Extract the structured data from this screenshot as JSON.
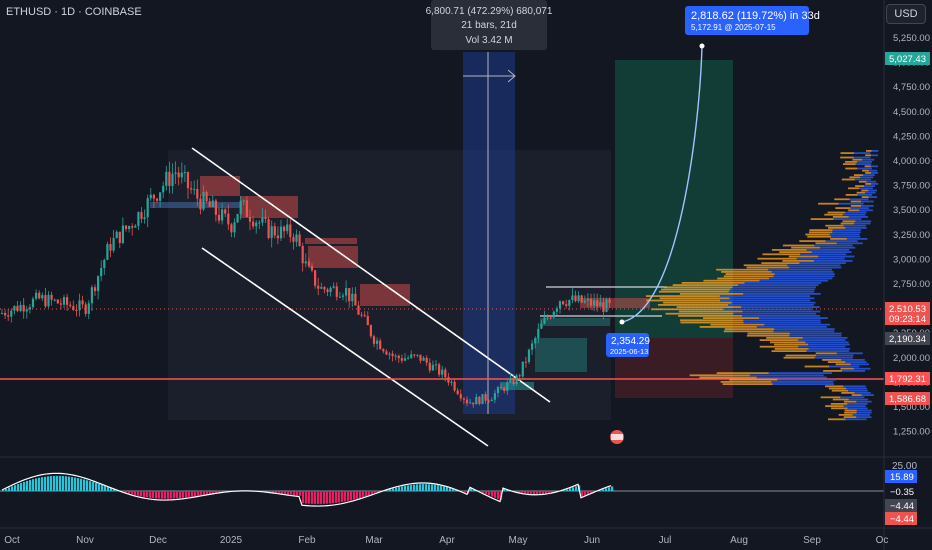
{
  "header": {
    "symbol": "ETHUSD · 1D · COINBASE"
  },
  "currency_button": "USD",
  "measure_tooltip": {
    "line1": "6,800.71 (472.29%) 680,071",
    "line2": "21 bars, 21d",
    "line3": "Vol 3.42 M"
  },
  "projection_label": {
    "line1": "2,818.62 (119.72%) in 33d",
    "line2": "5,172.91 @ 2025-07-15"
  },
  "point_label": {
    "line1": "2,354.29",
    "line2": "2025-06-13"
  },
  "colors": {
    "bg": "#131722",
    "up": "#26a69a",
    "down": "#ef5350",
    "accent": "#2962ff",
    "line": "#ff5252",
    "volume_up": "#2962ff",
    "volume_down": "#ffa726"
  },
  "price_axis": {
    "ticks": [
      "5,250.00",
      "5,000.00",
      "4,750.00",
      "4,500.00",
      "4,250.00",
      "4,000.00",
      "3,750.00",
      "3,500.00",
      "3,250.00",
      "3,000.00",
      "2,750.00",
      "2,500.00",
      "2,250.00",
      "2,000.00",
      "1,750.00",
      "1,500.00",
      "1,250.00"
    ],
    "badges": [
      {
        "text": "5,027.43",
        "color": "#26a69a"
      },
      {
        "text": "2,510.53",
        "color": "#ef5350"
      },
      {
        "text": "09:23:14",
        "color": "#ef5350"
      },
      {
        "text": "2,190.34",
        "color": "#434651"
      },
      {
        "text": "1,792.31",
        "color": "#ff5252"
      },
      {
        "text": "1,586.68",
        "color": "#ef5350"
      }
    ]
  },
  "osc_axis": {
    "ticks": [
      "25.00"
    ],
    "badges": [
      {
        "text": "15.89",
        "color": "#2962ff"
      },
      {
        "text": "−0.35",
        "color": "#131722"
      },
      {
        "text": "−4.44",
        "color": "#434651"
      },
      {
        "text": "−4.44",
        "color": "#ef5350"
      }
    ]
  },
  "time_axis": [
    "Oct",
    "Nov",
    "Dec",
    "2025",
    "Feb",
    "Mar",
    "Apr",
    "May",
    "Jun",
    "Jul",
    "Aug",
    "Sep",
    "Oc"
  ],
  "chart_data": {
    "type": "candlestick",
    "symbol": "ETHUSD",
    "interval": "1D",
    "exchange": "COINBASE",
    "ylim": [
      1150,
      5350
    ],
    "x": [
      "2024-10-01",
      "2024-10-15",
      "2024-11-01",
      "2024-11-10",
      "2024-11-20",
      "2024-12-01",
      "2024-12-08",
      "2024-12-16",
      "2025-01-01",
      "2025-01-07",
      "2025-01-15",
      "2025-01-25",
      "2025-02-01",
      "2025-02-03",
      "2025-02-15",
      "2025-03-01",
      "2025-03-10",
      "2025-03-20",
      "2025-04-01",
      "2025-04-09",
      "2025-04-20",
      "2025-05-01",
      "2025-05-09",
      "2025-05-15",
      "2025-06-01",
      "2025-06-13"
    ],
    "close": [
      2450,
      2600,
      2500,
      3150,
      3350,
      3700,
      3900,
      3650,
      3350,
      3550,
      3300,
      3250,
      2900,
      2700,
      2700,
      2200,
      2000,
      2000,
      1800,
      1550,
      1600,
      1800,
      2300,
      2600,
      2550,
      2510
    ],
    "horizontal_line": 1792.31,
    "current_price": 2510.53,
    "projection_target": 5172.91,
    "projection_date": "2025-07-15"
  }
}
